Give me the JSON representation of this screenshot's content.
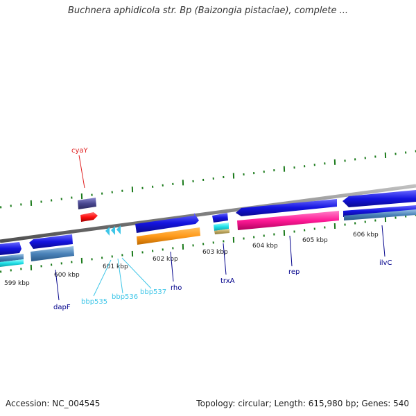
{
  "title": "Buchnera aphidicola str. Bp (Baizongia pistaciae), complete ...",
  "footer": {
    "accession": "Accession: NC_004545",
    "summary": "Topology: circular; Length: 615,980 bp; Genes: 540"
  },
  "colors": {
    "backbone": "#808080",
    "tick": "#1a7a1a",
    "forward_gene": "#1414e0",
    "rna_label": "#3ec6e8",
    "gene_label": "#00008b",
    "highlight_label": "#e02020"
  },
  "scale_labels": [
    "599 kbp",
    "600 kbp",
    "601 kbp",
    "602 kbp",
    "603 kbp",
    "604 kbp",
    "605 kbp",
    "606 kbp"
  ],
  "gene_labels": {
    "cyaY": "cyaY",
    "dapF": "dapF",
    "bbp535": "bbp535",
    "bbp536": "bbp536",
    "bbp537": "bbp537",
    "rho": "rho",
    "trxA": "trxA",
    "rep": "rep",
    "ilvC": "ilvC"
  }
}
